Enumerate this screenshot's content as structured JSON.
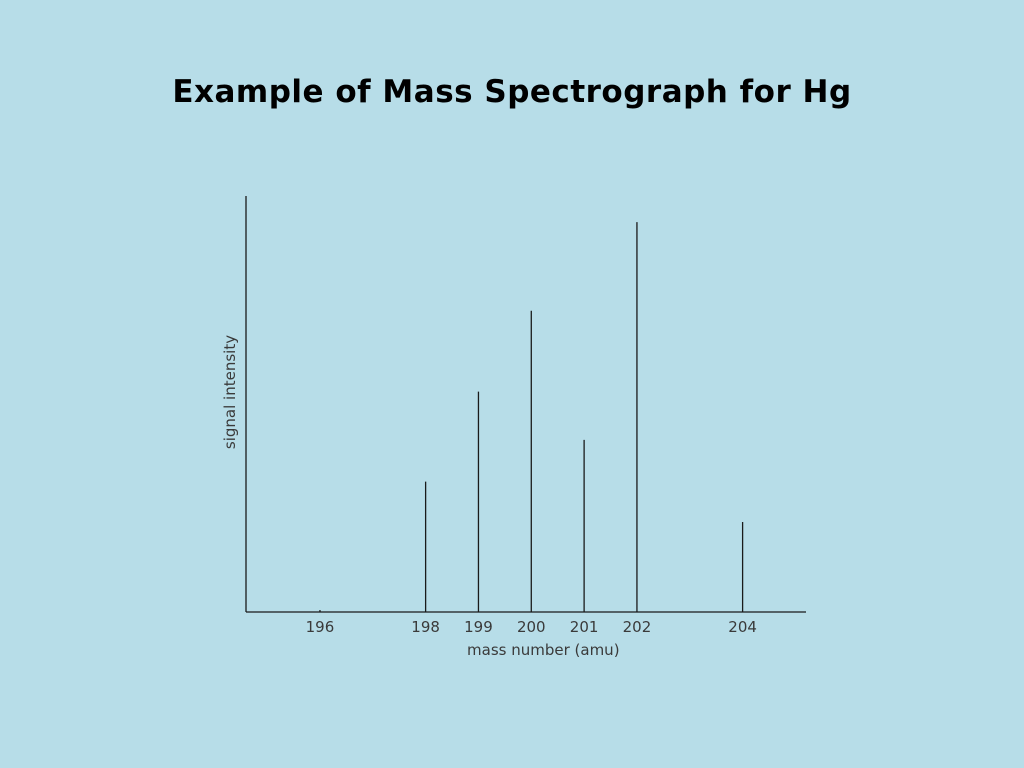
{
  "slide": {
    "title": "Example of Mass Spectrograph for Hg"
  },
  "colors": {
    "background": "#b7dde8",
    "line": "#1a1a1a",
    "text": "#3a3a3a"
  },
  "chart_data": {
    "type": "bar",
    "x": [
      196,
      198,
      199,
      200,
      201,
      202,
      204
    ],
    "values": [
      0.15,
      10.0,
      16.9,
      23.1,
      13.2,
      29.9,
      6.9
    ],
    "tick_labels": [
      "196",
      "198",
      "199",
      "200",
      "201",
      "202",
      "204"
    ],
    "xlabel": "mass number (amu)",
    "ylabel": "signal intensity",
    "xlim": [
      194.6,
      205.2
    ],
    "ylim": [
      0,
      31.9
    ],
    "grid": false,
    "legend": "none"
  }
}
